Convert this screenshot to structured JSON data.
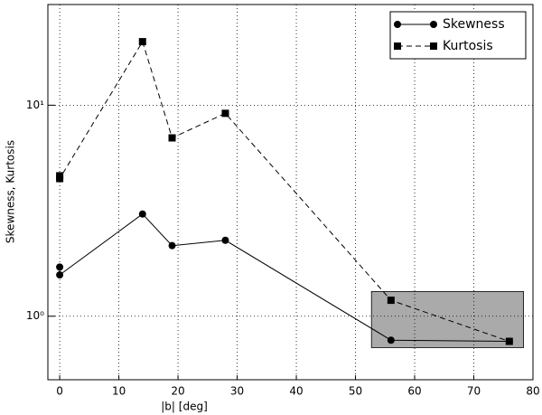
{
  "chart_data": {
    "type": "line",
    "xlabel": "|b| [deg]",
    "ylabel": "Skewness, Kurtosis",
    "xlim": [
      -2,
      80
    ],
    "xticks": [
      0,
      10,
      20,
      30,
      40,
      50,
      60,
      70,
      80
    ],
    "ylim": [
      0.5,
      30
    ],
    "yscale": "log",
    "yticks": [
      {
        "value": 1,
        "label": "10⁰"
      },
      {
        "value": 10,
        "label": "10¹"
      }
    ],
    "grid": true,
    "legend": "upper right",
    "series": [
      {
        "name": "Skewness",
        "color": "#000000",
        "linestyle": "solid",
        "marker": "circle",
        "x": [
          0,
          0,
          14,
          19,
          28,
          56,
          76
        ],
        "values": [
          1.71,
          1.57,
          3.05,
          2.16,
          2.29,
          0.77,
          0.76
        ]
      },
      {
        "name": "Kurtosis",
        "color": "#000000",
        "linestyle": "dashed",
        "marker": "square",
        "x": [
          0,
          0,
          14,
          19,
          28,
          56,
          76
        ],
        "values": [
          4.63,
          4.49,
          20,
          7.0,
          9.15,
          1.19,
          0.76
        ]
      }
    ],
    "shaded_region": {
      "x": [
        52.7,
        78.4
      ],
      "y": [
        0.71,
        1.31
      ],
      "color": "#aaaaaa"
    }
  }
}
